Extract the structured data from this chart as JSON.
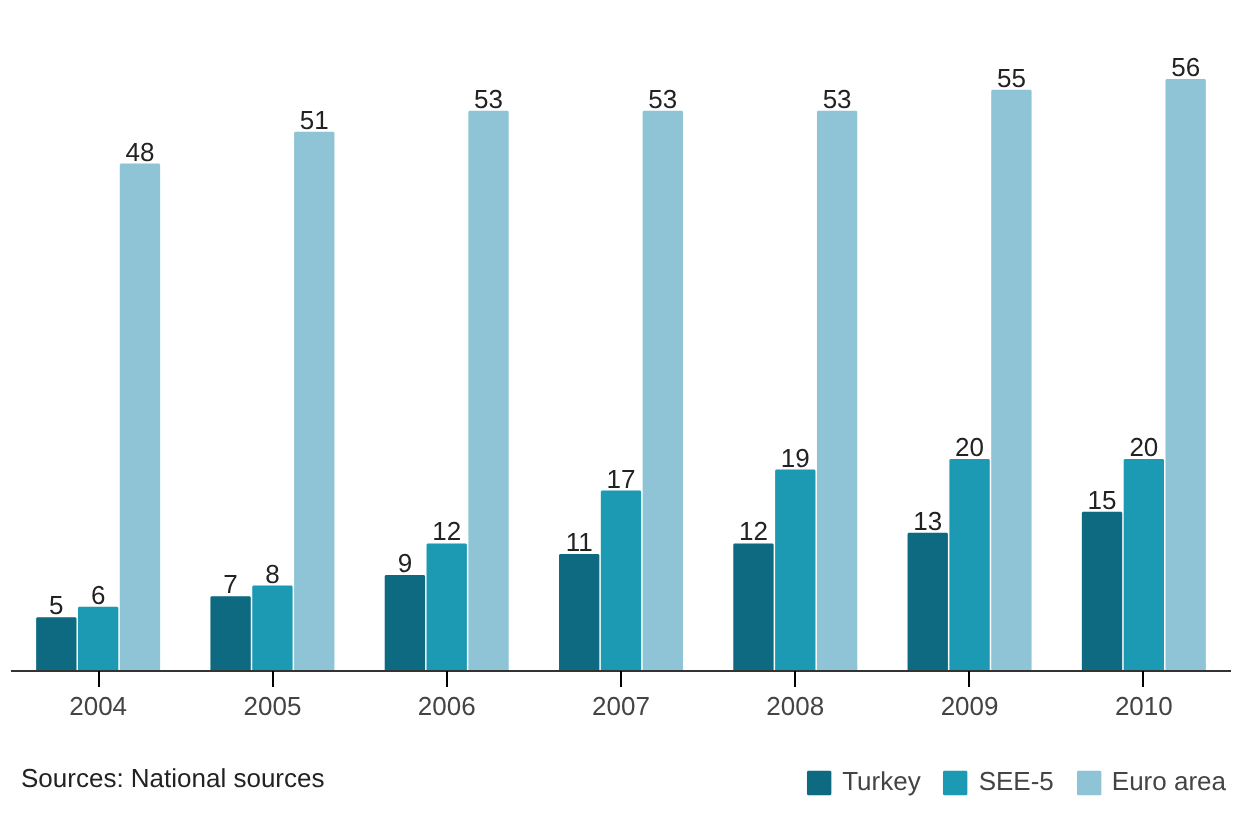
{
  "chart_data": {
    "type": "bar",
    "categories": [
      "2004",
      "2005",
      "2006",
      "2007",
      "2008",
      "2009",
      "2010"
    ],
    "series": [
      {
        "name": "Turkey",
        "color": "#0e6a80",
        "values": [
          5,
          7,
          9,
          11,
          12,
          13,
          15
        ]
      },
      {
        "name": "SEE-5",
        "color": "#1c9ab4",
        "values": [
          6,
          8,
          12,
          17,
          19,
          20,
          20
        ]
      },
      {
        "name": "Euro area",
        "color": "#8ec4d5",
        "values": [
          48,
          51,
          53,
          53,
          53,
          55,
          56
        ]
      }
    ],
    "data_labels": true,
    "grid": false,
    "legend": "bottom right",
    "annotations": [
      "Sources: National sources"
    ]
  }
}
